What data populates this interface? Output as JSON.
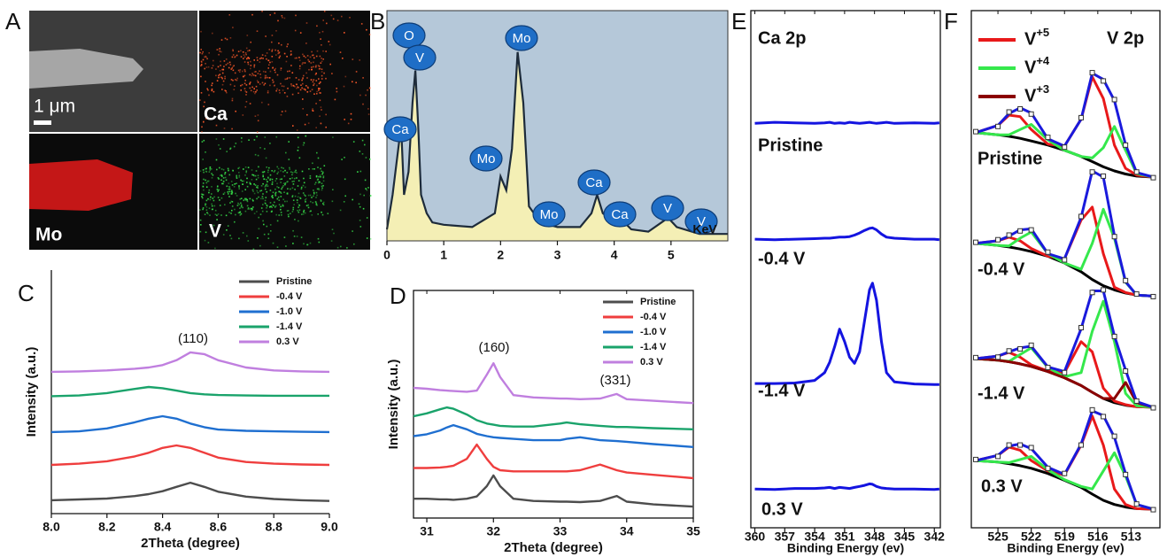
{
  "panel_a": {
    "label": "A",
    "scale_bar": "1 μm",
    "maps": [
      "Ca",
      "Mo",
      "V"
    ]
  },
  "chart_data": [
    {
      "panel_label": "B",
      "type": "area",
      "xlabel": "KeV",
      "x": [
        0,
        0.1,
        0.2,
        0.25,
        0.3,
        0.38,
        0.45,
        0.5,
        0.55,
        0.6,
        0.7,
        0.8,
        1.0,
        1.5,
        1.9,
        2.0,
        2.1,
        2.2,
        2.3,
        2.4,
        2.5,
        2.7,
        3.0,
        3.4,
        3.6,
        3.7,
        3.8,
        4.0,
        4.1,
        4.3,
        4.6,
        4.95,
        5.1,
        5.5,
        6
      ],
      "values": [
        5,
        20,
        40,
        50,
        20,
        30,
        60,
        74,
        50,
        20,
        12,
        8,
        7,
        6,
        12,
        28,
        22,
        40,
        82,
        60,
        15,
        8,
        6,
        6,
        12,
        20,
        12,
        8,
        10,
        5,
        4,
        10,
        6,
        3,
        3
      ],
      "xlim": [
        0,
        6
      ],
      "ylim": [
        0,
        100
      ],
      "xticks": [
        0,
        1,
        2,
        3,
        4,
        5
      ],
      "color": "#f4efb5",
      "background": "#b5c8d9",
      "annotations": [
        "O",
        "V",
        "Ca",
        "Mo",
        "Mo",
        "Mo",
        "Ca",
        "Ca",
        "V",
        "V"
      ]
    },
    {
      "panel_label": "C",
      "type": "line",
      "xlabel": "2Theta (degree)",
      "ylabel": "Intensity (a.u.)",
      "x": [
        8.0,
        8.1,
        8.2,
        8.3,
        8.35,
        8.4,
        8.45,
        8.5,
        8.55,
        8.6,
        8.7,
        8.8,
        8.9,
        9.0
      ],
      "series": [
        {
          "name": "Pristine",
          "color": "#4d4d4d",
          "values": [
            0.55,
            0.58,
            0.62,
            0.72,
            0.8,
            0.92,
            1.1,
            1.27,
            1.1,
            0.9,
            0.7,
            0.6,
            0.55,
            0.52
          ]
        },
        {
          "name": "-0.4 V",
          "color": "#ef3e3e",
          "values": [
            2.0,
            2.05,
            2.15,
            2.35,
            2.5,
            2.7,
            2.8,
            2.7,
            2.5,
            2.3,
            2.12,
            2.05,
            2.02,
            2.0
          ]
        },
        {
          "name": "-1.0 V",
          "color": "#1f6fd0",
          "values": [
            3.35,
            3.38,
            3.5,
            3.75,
            3.9,
            4.0,
            3.9,
            3.7,
            3.55,
            3.45,
            3.4,
            3.38,
            3.36,
            3.35
          ]
        },
        {
          "name": "-1.4 V",
          "color": "#1aa36b",
          "values": [
            4.82,
            4.85,
            4.95,
            5.12,
            5.2,
            5.15,
            5.05,
            4.95,
            4.9,
            4.87,
            4.85,
            4.84,
            4.84,
            4.84
          ]
        },
        {
          "name": "0.3 V",
          "color": "#c07fdf",
          "values": [
            5.82,
            5.84,
            5.88,
            5.95,
            6.0,
            6.1,
            6.3,
            6.62,
            6.55,
            6.3,
            6.0,
            5.88,
            5.84,
            5.82
          ]
        }
      ],
      "xlim": [
        8,
        9
      ],
      "ylim": [
        0,
        10
      ],
      "xticks": [
        {
          "value": 8,
          "label": "8.0"
        },
        8.2,
        8.4,
        8.6,
        8.8,
        {
          "value": 9,
          "label": "9.0"
        }
      ],
      "legend": "top-right",
      "annotations": [
        "(110)"
      ]
    },
    {
      "panel_label": "D",
      "type": "line",
      "xlabel": "2Theta (degree)",
      "ylabel": "Intensity (a.u.)",
      "x": [
        30.8,
        31.0,
        31.2,
        31.3,
        31.4,
        31.6,
        31.75,
        31.9,
        32.0,
        32.1,
        32.3,
        32.6,
        33.0,
        33.1,
        33.3,
        33.6,
        33.85,
        34.0,
        34.4,
        35.0
      ],
      "series": [
        {
          "name": "Pristine",
          "color": "#4d4d4d",
          "values": [
            0.85,
            0.85,
            0.82,
            0.82,
            0.8,
            0.85,
            0.95,
            1.4,
            1.87,
            1.4,
            0.85,
            0.75,
            0.72,
            0.72,
            0.7,
            0.75,
            0.97,
            0.72,
            0.6,
            0.5
          ]
        },
        {
          "name": "-0.4 V",
          "color": "#ef3e3e",
          "values": [
            2.2,
            2.2,
            2.22,
            2.25,
            2.3,
            2.6,
            3.23,
            2.6,
            2.25,
            2.1,
            2.05,
            2.05,
            2.05,
            2.05,
            2.1,
            2.35,
            2.1,
            2.0,
            1.9,
            1.75
          ]
        },
        {
          "name": "-1.0 V",
          "color": "#1f6fd0",
          "values": [
            3.6,
            3.68,
            3.85,
            3.98,
            4.08,
            3.9,
            3.7,
            3.6,
            3.55,
            3.52,
            3.48,
            3.42,
            3.42,
            3.48,
            3.55,
            3.42,
            3.38,
            3.35,
            3.25,
            3.12
          ]
        },
        {
          "name": "-1.4 V",
          "color": "#1aa36b",
          "values": [
            4.47,
            4.6,
            4.78,
            4.86,
            4.8,
            4.55,
            4.3,
            4.15,
            4.1,
            4.05,
            4.02,
            4.02,
            4.15,
            4.2,
            4.12,
            4.05,
            4.0,
            4.0,
            3.95,
            3.9
          ]
        },
        {
          "name": "0.3 V",
          "color": "#c07fdf",
          "values": [
            5.72,
            5.68,
            5.62,
            5.6,
            5.58,
            5.55,
            5.6,
            6.3,
            6.8,
            6.2,
            5.4,
            5.3,
            5.25,
            5.25,
            5.22,
            5.25,
            5.45,
            5.22,
            5.15,
            5.05
          ]
        }
      ],
      "xlim": [
        30.8,
        35
      ],
      "ylim": [
        0,
        10
      ],
      "xticks": [
        31,
        32,
        33,
        34,
        35
      ],
      "legend": "top-right",
      "annotations": [
        "(160)",
        "(331)"
      ]
    },
    {
      "panel_label": "E",
      "type": "line",
      "title": "Ca 2p",
      "xlabel": "Binding Energy (ev)",
      "x": [
        360,
        358,
        356,
        354,
        353,
        352.5,
        352,
        351.5,
        351,
        350.5,
        350,
        349.5,
        349,
        348.5,
        348.2,
        347.8,
        347.3,
        346.8,
        346,
        344,
        342,
        341.5
      ],
      "series": [
        {
          "name": "Pristine",
          "color": "#1414e0",
          "values": [
            7.82,
            7.84,
            7.83,
            7.82,
            7.83,
            7.84,
            7.82,
            7.83,
            7.82,
            7.84,
            7.83,
            7.82,
            7.83,
            7.84,
            7.83,
            7.82,
            7.83,
            7.84,
            7.82,
            7.83,
            7.82,
            7.83
          ]
        },
        {
          "name": "-0.4 V",
          "color": "#1414e0",
          "values": [
            5.58,
            5.57,
            5.58,
            5.59,
            5.6,
            5.6,
            5.61,
            5.62,
            5.62,
            5.63,
            5.66,
            5.7,
            5.75,
            5.79,
            5.8,
            5.76,
            5.68,
            5.62,
            5.6,
            5.58,
            5.58,
            5.57
          ]
        },
        {
          "name": "-1.4 V",
          "color": "#1414e0",
          "values": [
            2.79,
            2.79,
            2.8,
            2.85,
            3.0,
            3.2,
            3.5,
            3.84,
            3.6,
            3.3,
            3.18,
            3.4,
            4.0,
            4.6,
            4.73,
            4.4,
            3.6,
            3.0,
            2.82,
            2.78,
            2.77,
            2.77
          ]
        },
        {
          "name": "0.3 V",
          "color": "#1414e0",
          "values": [
            0.75,
            0.74,
            0.76,
            0.76,
            0.77,
            0.78,
            0.76,
            0.78,
            0.77,
            0.76,
            0.78,
            0.8,
            0.82,
            0.85,
            0.84,
            0.8,
            0.77,
            0.76,
            0.75,
            0.75,
            0.74,
            0.75
          ]
        }
      ],
      "xlim": [
        360.4,
        341.4
      ],
      "ylim": [
        0,
        10
      ],
      "xticks": [
        360,
        357,
        354,
        351,
        348,
        345,
        342
      ]
    },
    {
      "panel_label": "F",
      "type": "xps-stack",
      "title": "V 2p",
      "xlabel": "Binding Energy (ev)",
      "legend": [
        {
          "name": "V+5",
          "color": "#e8191a"
        },
        {
          "name": "V+4",
          "color": "#35e84c"
        },
        {
          "name": "V+3",
          "color": "#8b0000"
        }
      ],
      "x": [
        527,
        525,
        524,
        523,
        522,
        520.5,
        519,
        517.5,
        516.5,
        515.5,
        514.5,
        513.5,
        512.5,
        511
      ],
      "stacks": [
        {
          "label": "Pristine",
          "series": [
            {
              "color": "#000000",
              "values": [
                7.64,
                7.6,
                7.57,
                7.53,
                7.48,
                7.4,
                7.3,
                7.18,
                7.08,
                6.98,
                6.9,
                6.84,
                6.8,
                6.78
              ]
            },
            {
              "color": "#e8191a",
              "values": [
                7.64,
                7.78,
                7.98,
                7.95,
                7.7,
                7.42,
                7.38,
                7.9,
                8.72,
                8.3,
                7.4,
                6.95,
                6.82,
                6.78
              ]
            },
            {
              "color": "#35e84c",
              "values": [
                7.64,
                7.6,
                7.6,
                7.7,
                7.8,
                7.5,
                7.3,
                7.18,
                7.15,
                7.35,
                7.76,
                7.3,
                6.85,
                6.78
              ]
            },
            {
              "color": "#1a1adc",
              "values": [
                7.64,
                7.78,
                8.01,
                8.12,
                8.02,
                7.52,
                7.38,
                7.9,
                8.79,
                8.67,
                8.26,
                7.41,
                6.87,
                6.78
              ]
            },
            {
              "color": "#333333",
              "marker": "square",
              "values": [
                7.66,
                7.76,
                8.04,
                8.1,
                8.0,
                7.55,
                7.36,
                7.93,
                8.8,
                8.64,
                8.28,
                7.4,
                6.88,
                6.77
              ]
            }
          ]
        },
        {
          "label": "-0.4 V",
          "series": [
            {
              "color": "#000000",
              "values": [
                5.5,
                5.46,
                5.43,
                5.39,
                5.34,
                5.25,
                5.12,
                4.95,
                4.8,
                4.68,
                4.6,
                4.54,
                4.5,
                4.48
              ]
            },
            {
              "color": "#e8191a",
              "values": [
                5.5,
                5.55,
                5.62,
                5.55,
                5.4,
                5.25,
                5.2,
                5.95,
                6.2,
                5.3,
                4.65,
                4.55,
                4.5,
                4.48
              ]
            },
            {
              "color": "#35e84c",
              "values": [
                5.5,
                5.46,
                5.45,
                5.6,
                5.72,
                5.3,
                5.12,
                5.0,
                5.5,
                6.16,
                5.6,
                4.75,
                4.5,
                4.48
              ]
            },
            {
              "color": "#1a1adc",
              "values": [
                5.5,
                5.55,
                5.64,
                5.76,
                5.78,
                5.3,
                5.2,
                6.0,
                6.9,
                6.78,
                5.65,
                4.76,
                4.5,
                4.48
              ]
            },
            {
              "color": "#333333",
              "marker": "square",
              "values": [
                5.52,
                5.57,
                5.66,
                5.74,
                5.76,
                5.33,
                5.18,
                6.02,
                6.88,
                6.8,
                5.63,
                4.78,
                4.52,
                4.47
              ]
            }
          ]
        },
        {
          "label": "-1.4 V",
          "series": [
            {
              "color": "#000000",
              "values": [
                3.27,
                3.24,
                3.21,
                3.17,
                3.12,
                3.02,
                2.9,
                2.75,
                2.62,
                2.5,
                2.42,
                2.37,
                2.34,
                2.33
              ]
            },
            {
              "color": "#e8191a",
              "values": [
                3.27,
                3.32,
                3.39,
                3.3,
                3.15,
                3.03,
                3.0,
                3.6,
                3.4,
                2.7,
                2.45,
                2.38,
                2.34,
                2.33
              ]
            },
            {
              "color": "#35e84c",
              "values": [
                3.27,
                3.24,
                3.22,
                3.35,
                3.48,
                3.1,
                2.92,
                3.0,
                3.8,
                4.38,
                3.6,
                2.6,
                2.36,
                2.33
              ]
            },
            {
              "color": "#8b0000",
              "values": [
                3.27,
                3.24,
                3.21,
                3.17,
                3.12,
                3.02,
                2.9,
                2.75,
                2.62,
                2.5,
                2.5,
                2.81,
                2.42,
                2.33
              ]
            },
            {
              "color": "#1a1adc",
              "values": [
                3.27,
                3.32,
                3.4,
                3.48,
                3.51,
                3.11,
                3.02,
                3.85,
                4.58,
                4.58,
                3.71,
                3.05,
                2.44,
                2.33
              ]
            },
            {
              "color": "#333333",
              "marker": "square",
              "values": [
                3.29,
                3.3,
                3.42,
                3.46,
                3.53,
                3.1,
                3.0,
                3.87,
                4.55,
                4.6,
                3.7,
                3.03,
                2.45,
                2.32
              ]
            }
          ]
        },
        {
          "label": "0.3 V",
          "series": [
            {
              "color": "#000000",
              "values": [
                1.3,
                1.27,
                1.24,
                1.2,
                1.15,
                1.05,
                0.92,
                0.78,
                0.65,
                0.53,
                0.45,
                0.4,
                0.37,
                0.36
              ]
            },
            {
              "color": "#e8191a",
              "values": [
                1.3,
                1.4,
                1.56,
                1.5,
                1.3,
                1.1,
                1.02,
                1.6,
                2.16,
                1.6,
                0.75,
                0.45,
                0.37,
                0.36
              ]
            },
            {
              "color": "#35e84c",
              "values": [
                1.3,
                1.27,
                1.26,
                1.32,
                1.38,
                1.12,
                0.93,
                0.8,
                0.75,
                1.1,
                1.45,
                1.0,
                0.45,
                0.36
              ]
            },
            {
              "color": "#1a1adc",
              "values": [
                1.3,
                1.4,
                1.58,
                1.62,
                1.53,
                1.17,
                1.03,
                1.62,
                2.26,
                2.17,
                1.75,
                1.05,
                0.45,
                0.36
              ]
            },
            {
              "color": "#333333",
              "marker": "square",
              "values": [
                1.32,
                1.38,
                1.6,
                1.6,
                1.55,
                1.15,
                1.05,
                1.6,
                2.28,
                2.15,
                1.77,
                1.03,
                0.46,
                0.35
              ]
            }
          ]
        }
      ],
      "xlim": [
        527.4,
        510.4
      ],
      "ylim": [
        0,
        10
      ],
      "xticks": [
        525,
        522,
        519,
        516,
        513
      ]
    }
  ]
}
